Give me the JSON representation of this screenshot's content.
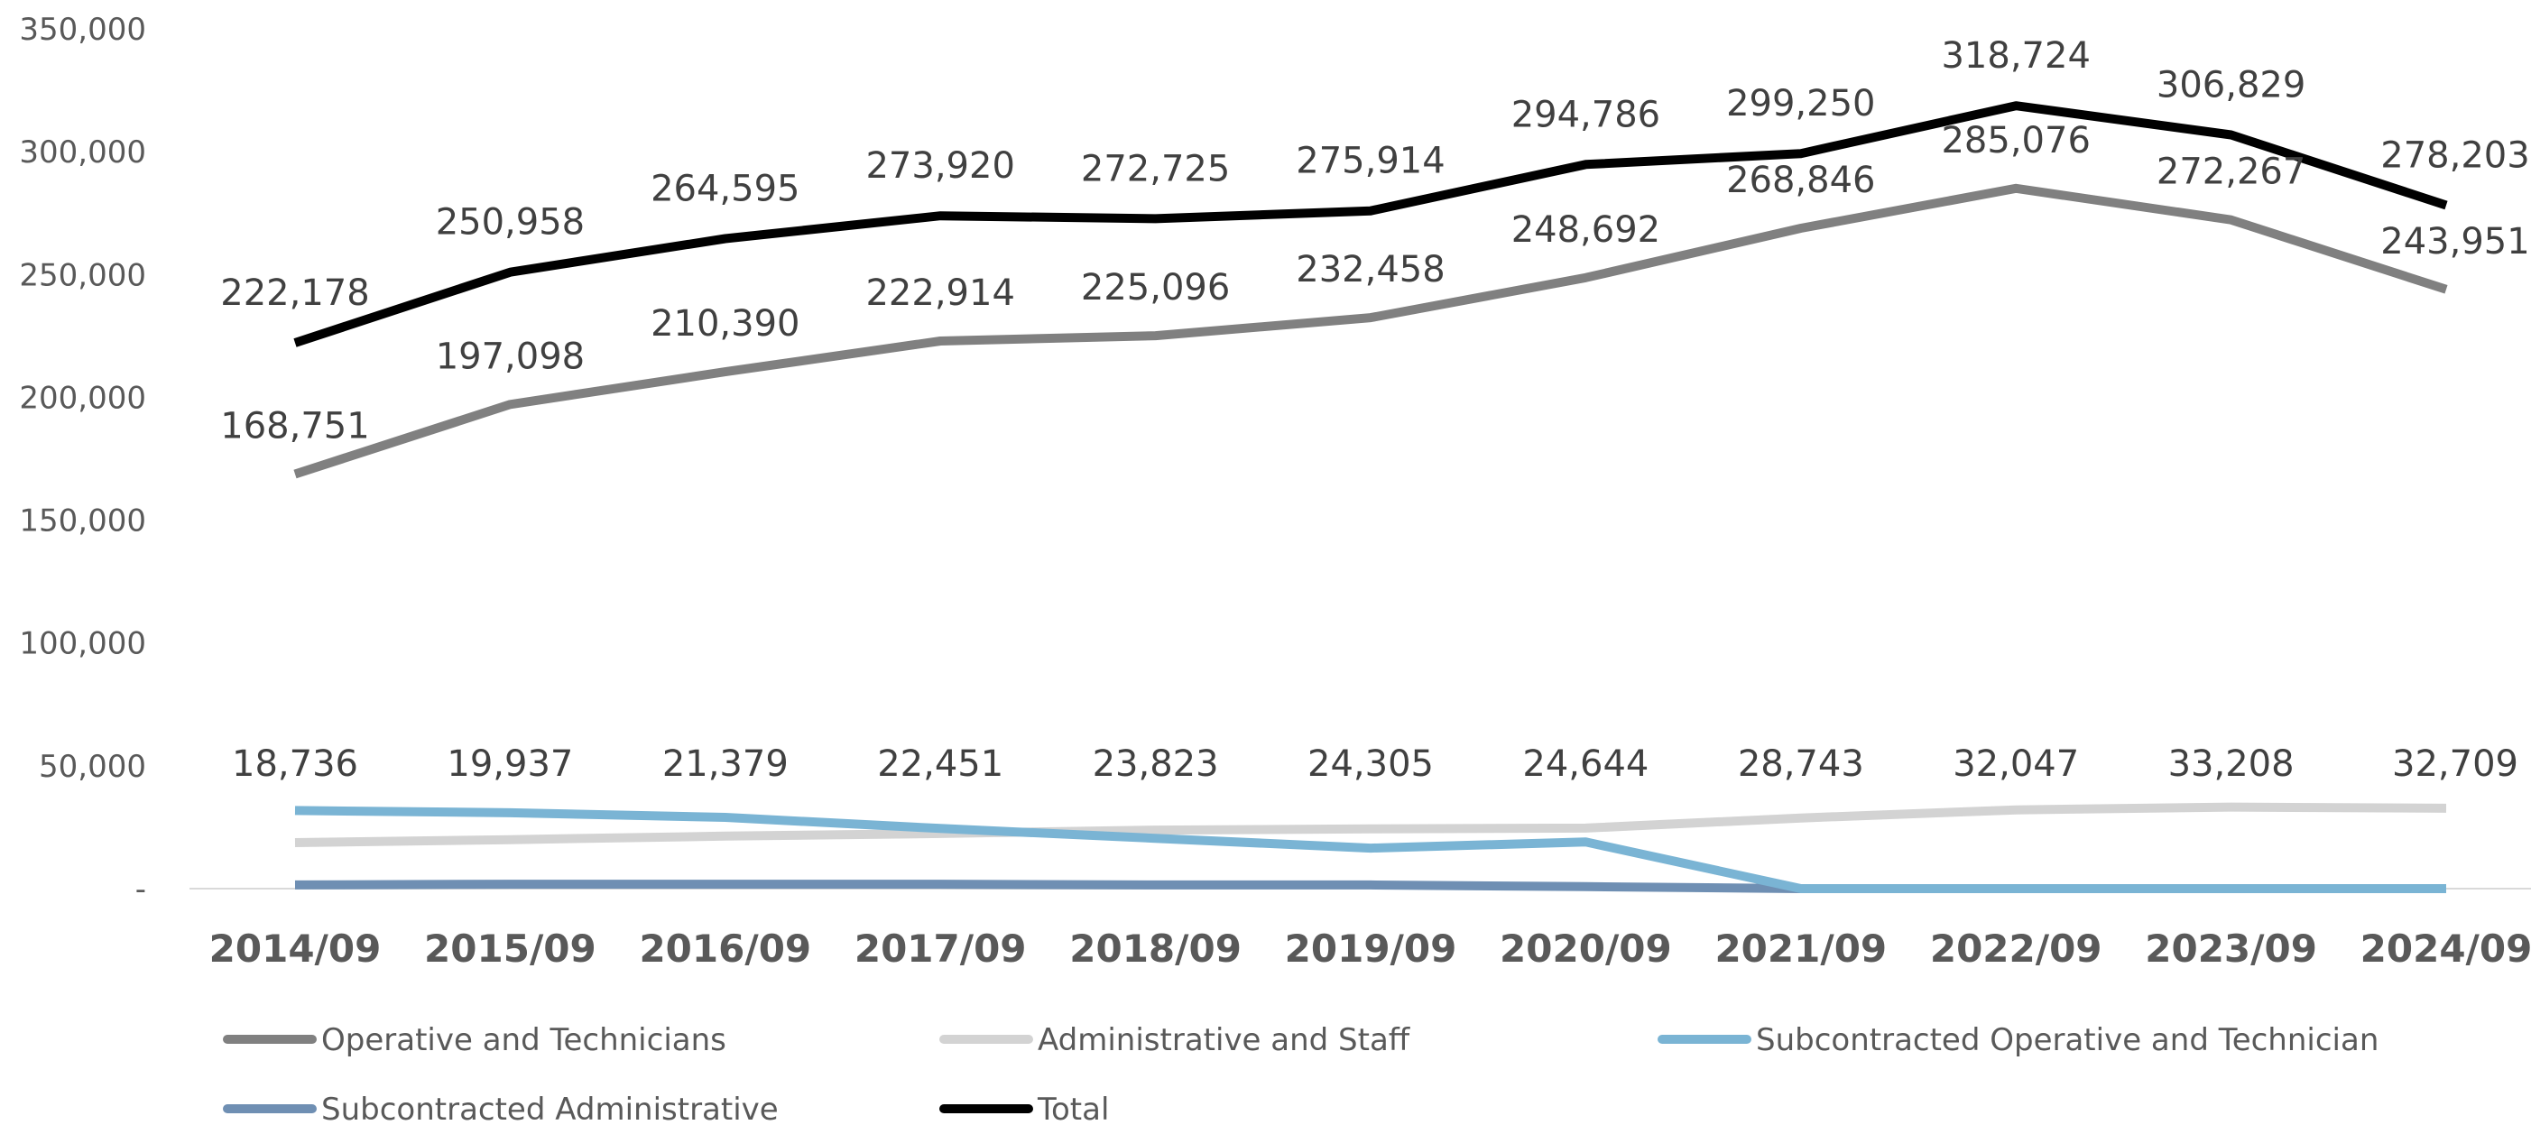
{
  "chart_data": {
    "type": "line",
    "categories": [
      "2014/09",
      "2015/09",
      "2016/09",
      "2017/09",
      "2018/09",
      "2019/09",
      "2020/09",
      "2021/09",
      "2022/09",
      "2023/09",
      "2024/09"
    ],
    "y_ticks": [
      "-",
      "50,000",
      "100,000",
      "150,000",
      "200,000",
      "250,000",
      "300,000",
      "350,000"
    ],
    "ylim": [
      0,
      350000
    ],
    "grid": false,
    "legend_position": "bottom",
    "series": [
      {
        "name": "Operative and Technicians",
        "color": "#808080",
        "values": [
          168751,
          197098,
          210390,
          222914,
          225096,
          232458,
          248692,
          268846,
          285076,
          272267,
          243951
        ],
        "labels": [
          "168,751",
          "197,098",
          "210,390",
          "222,914",
          "225,096",
          "232,458",
          "248,692",
          "268,846",
          "285,076",
          "272,267",
          "243,951"
        ]
      },
      {
        "name": "Administrative and Staff",
        "color": "#d3d3d3",
        "values": [
          18736,
          19937,
          21379,
          22451,
          23823,
          24305,
          24644,
          28743,
          32047,
          33208,
          32709
        ],
        "labels": [
          "18,736",
          "19,937",
          "21,379",
          "22,451",
          "23,823",
          "24,305",
          "24,644",
          "28,743",
          "32,047",
          "33,208",
          "32,709"
        ]
      },
      {
        "name": "Subcontracted Operative and Technician",
        "color": "#7ab4d4",
        "values": [
          31800,
          30900,
          29000,
          24500,
          20500,
          16500,
          19000,
          0,
          0,
          0,
          0
        ]
      },
      {
        "name": "Subcontracted Administrative",
        "color": "#6f8fb3",
        "values": [
          1500,
          1800,
          1800,
          1800,
          1500,
          1500,
          800,
          0,
          0,
          0,
          0
        ]
      },
      {
        "name": "Total",
        "color": "#000000",
        "values": [
          222178,
          250958,
          264595,
          273920,
          272725,
          275914,
          294786,
          299250,
          318724,
          306829,
          278203
        ],
        "labels": [
          "222,178",
          "250,958",
          "264,595",
          "273,920",
          "272,725",
          "275,914",
          "294,786",
          "299,250",
          "318,724",
          "306,829",
          "278,203"
        ]
      }
    ]
  }
}
